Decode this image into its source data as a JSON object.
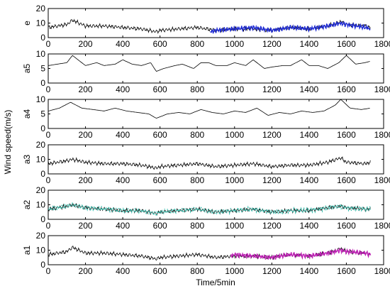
{
  "chart_data": [
    {
      "type": "line",
      "panel_label": "e",
      "xlim": [
        0,
        1800
      ],
      "ylim": [
        0,
        20
      ],
      "xticks": [
        "0",
        "200",
        "400",
        "600",
        "800",
        "1000",
        "1200",
        "1400",
        "1600",
        "1800"
      ],
      "yticks": [
        "0",
        "10",
        "20"
      ],
      "series": [
        {
          "role": "signal",
          "color": "#000000",
          "x": [
            1,
            100,
            130,
            200,
            300,
            400,
            500,
            580,
            600,
            700,
            800,
            900,
            1000,
            1100,
            1200,
            1300,
            1400,
            1500,
            1570,
            1600,
            1700,
            1730
          ],
          "values": [
            7,
            9,
            12,
            8,
            8,
            7,
            6,
            4,
            5,
            6,
            7,
            5,
            6,
            6,
            5,
            7,
            6,
            8,
            11,
            9,
            8,
            7
          ]
        },
        {
          "role": "overlay",
          "color": "#1f2bd6",
          "x": [
            870,
            900,
            1000,
            1100,
            1200,
            1300,
            1400,
            1500,
            1570,
            1600,
            1700,
            1730
          ],
          "values": [
            4,
            5,
            6,
            7,
            5,
            7,
            6,
            8,
            10,
            9,
            7,
            6
          ]
        }
      ]
    },
    {
      "type": "line",
      "panel_label": "a5",
      "xlim": [
        0,
        1800
      ],
      "ylim": [
        0,
        10
      ],
      "xticks": [
        "0",
        "200",
        "400",
        "600",
        "800",
        "1000",
        "1200",
        "1400",
        "1600",
        "1800"
      ],
      "yticks": [
        "0",
        "5",
        "10"
      ],
      "series": [
        {
          "role": "signal",
          "color": "#000000",
          "x": [
            1,
            50,
            100,
            130,
            160,
            200,
            260,
            300,
            360,
            400,
            450,
            500,
            550,
            580,
            620,
            680,
            720,
            780,
            820,
            860,
            900,
            960,
            1000,
            1060,
            1100,
            1160,
            1200,
            1260,
            1300,
            1360,
            1400,
            1450,
            1500,
            1560,
            1600,
            1650,
            1700,
            1730
          ],
          "values": [
            6,
            6.5,
            7,
            9.5,
            8,
            6,
            7,
            6,
            6.5,
            8,
            6.5,
            6,
            7,
            4,
            5,
            6,
            6.5,
            5,
            7,
            7,
            6,
            6,
            7,
            6,
            8,
            5,
            5.5,
            6,
            6,
            8,
            6,
            6,
            5,
            7,
            9.5,
            6.5,
            7,
            7.5
          ]
        }
      ]
    },
    {
      "type": "line",
      "panel_label": "a4",
      "xlim": [
        0,
        1800
      ],
      "ylim": [
        0,
        10
      ],
      "xticks": [
        "0",
        "200",
        "400",
        "600",
        "800",
        "1000",
        "1200",
        "1400",
        "1600",
        "1800"
      ],
      "yticks": [
        "0",
        "5",
        "10"
      ],
      "series": [
        {
          "role": "signal",
          "color": "#000000",
          "x": [
            1,
            60,
            120,
            180,
            240,
            300,
            360,
            420,
            480,
            540,
            580,
            640,
            700,
            760,
            820,
            880,
            940,
            1000,
            1060,
            1120,
            1180,
            1240,
            1300,
            1360,
            1420,
            1480,
            1540,
            1570,
            1620,
            1680,
            1730
          ],
          "values": [
            6,
            7,
            9,
            7,
            6.5,
            6,
            7,
            6,
            5.5,
            5,
            3.5,
            5,
            5.5,
            5,
            6.5,
            5.5,
            5,
            6,
            5.5,
            7,
            4.5,
            5.5,
            5,
            6,
            5.5,
            6,
            8,
            10,
            7,
            6.5,
            7
          ]
        }
      ]
    },
    {
      "type": "line",
      "panel_label": "a3",
      "xlim": [
        0,
        1800
      ],
      "ylim": [
        0,
        20
      ],
      "xticks": [
        "0",
        "200",
        "400",
        "600",
        "800",
        "1000",
        "1200",
        "1400",
        "1600",
        "1800"
      ],
      "yticks": [
        "0",
        "10",
        "20"
      ],
      "series": [
        {
          "role": "signal",
          "color": "#000000",
          "x": [
            1,
            100,
            130,
            200,
            300,
            400,
            500,
            580,
            600,
            700,
            800,
            900,
            1000,
            1100,
            1200,
            1300,
            1400,
            1500,
            1570,
            1600,
            1700,
            1730
          ],
          "values": [
            7,
            9,
            10,
            8,
            7,
            7,
            6,
            4,
            5,
            6,
            7,
            5,
            6,
            7,
            5,
            6,
            6,
            8,
            11,
            8,
            7,
            8
          ]
        }
      ]
    },
    {
      "type": "line",
      "panel_label": "a2",
      "xlim": [
        0,
        1800
      ],
      "ylim": [
        0,
        20
      ],
      "xticks": [
        "0",
        "200",
        "400",
        "600",
        "800",
        "1000",
        "1200",
        "1400",
        "1600",
        "1800"
      ],
      "yticks": [
        "0",
        "10",
        "20"
      ],
      "series": [
        {
          "role": "signal",
          "color": "#000000",
          "x": [
            1,
            100,
            130,
            200,
            300,
            400,
            500,
            580,
            600,
            700,
            800,
            900,
            1000,
            1100,
            1200,
            1300,
            1400,
            1500,
            1570,
            1600,
            1700,
            1730
          ],
          "values": [
            7,
            9,
            10,
            8,
            7,
            6,
            6,
            4,
            5,
            6,
            7,
            5,
            6,
            7,
            5,
            6,
            6,
            8,
            9,
            8,
            7,
            7
          ]
        },
        {
          "role": "overlay",
          "color": "#3fc0b0",
          "x": [
            1,
            100,
            130,
            200,
            300,
            400,
            500,
            580,
            600,
            700,
            800,
            900,
            1000,
            1100,
            1200,
            1300,
            1400,
            1500,
            1570,
            1600,
            1700,
            1730
          ],
          "values": [
            7,
            9,
            10,
            8,
            7,
            6,
            6,
            4,
            5,
            6,
            7,
            5,
            6,
            7,
            5,
            6,
            6,
            8,
            9,
            8,
            7,
            7
          ]
        }
      ]
    },
    {
      "type": "line",
      "panel_label": "a1",
      "xlim": [
        0,
        1800
      ],
      "ylim": [
        0,
        20
      ],
      "xticks": [
        "0",
        "200",
        "400",
        "600",
        "800",
        "1000",
        "1200",
        "1400",
        "1600",
        "1800"
      ],
      "yticks": [
        "0",
        "10",
        "20"
      ],
      "series": [
        {
          "role": "signal",
          "color": "#000000",
          "x": [
            1,
            100,
            130,
            200,
            300,
            400,
            500,
            580,
            600,
            700,
            800,
            900,
            1000,
            1100,
            1200,
            1300,
            1400,
            1500,
            1570,
            1600,
            1700,
            1730
          ],
          "values": [
            7,
            9,
            12,
            8,
            8,
            7,
            6,
            4,
            5,
            6,
            7,
            5,
            6,
            6,
            5,
            7,
            6,
            8,
            11,
            9,
            8,
            7
          ]
        },
        {
          "role": "overlay",
          "color": "#c21fb8",
          "x": [
            980,
            1000,
            1100,
            1200,
            1300,
            1400,
            1500,
            1570,
            1600,
            1700,
            1730
          ],
          "values": [
            6,
            7,
            6,
            5,
            7,
            6,
            8,
            10,
            9,
            8,
            7
          ]
        }
      ]
    }
  ],
  "labels": {
    "ylabel": "Wind speed(m/s)",
    "xlabel": "Time/5min"
  }
}
